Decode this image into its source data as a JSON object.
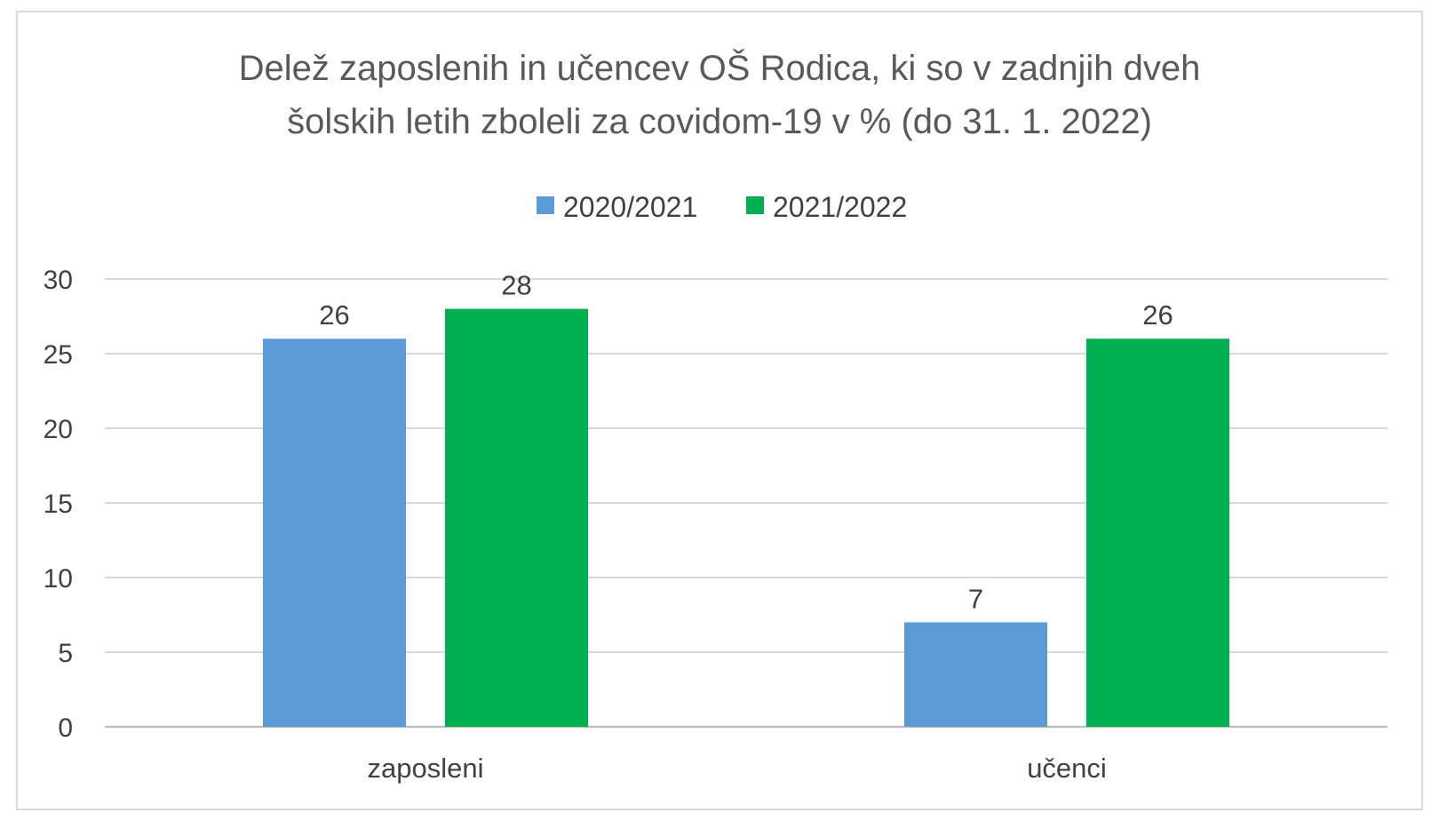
{
  "chart_data": {
    "type": "bar",
    "title_lines": [
      "Delež zaposlenih in učencev OŠ Rodica, ki so v zadnjih dveh",
      "šolskih letih zboleli za covidom-19 v % (do 31. 1. 2022)"
    ],
    "categories": [
      "zaposleni",
      "učenci"
    ],
    "series": [
      {
        "name": "2020/2021",
        "values": [
          26,
          7
        ],
        "color": "#5b9bd5"
      },
      {
        "name": "2021/2022",
        "values": [
          28,
          26
        ],
        "color": "#00b050"
      }
    ],
    "ylim": [
      0,
      30
    ],
    "yticks": [
      "0",
      "5",
      "10",
      "15",
      "20",
      "25",
      "30"
    ],
    "grid": true,
    "legend_position": "top",
    "data_labels": true
  }
}
